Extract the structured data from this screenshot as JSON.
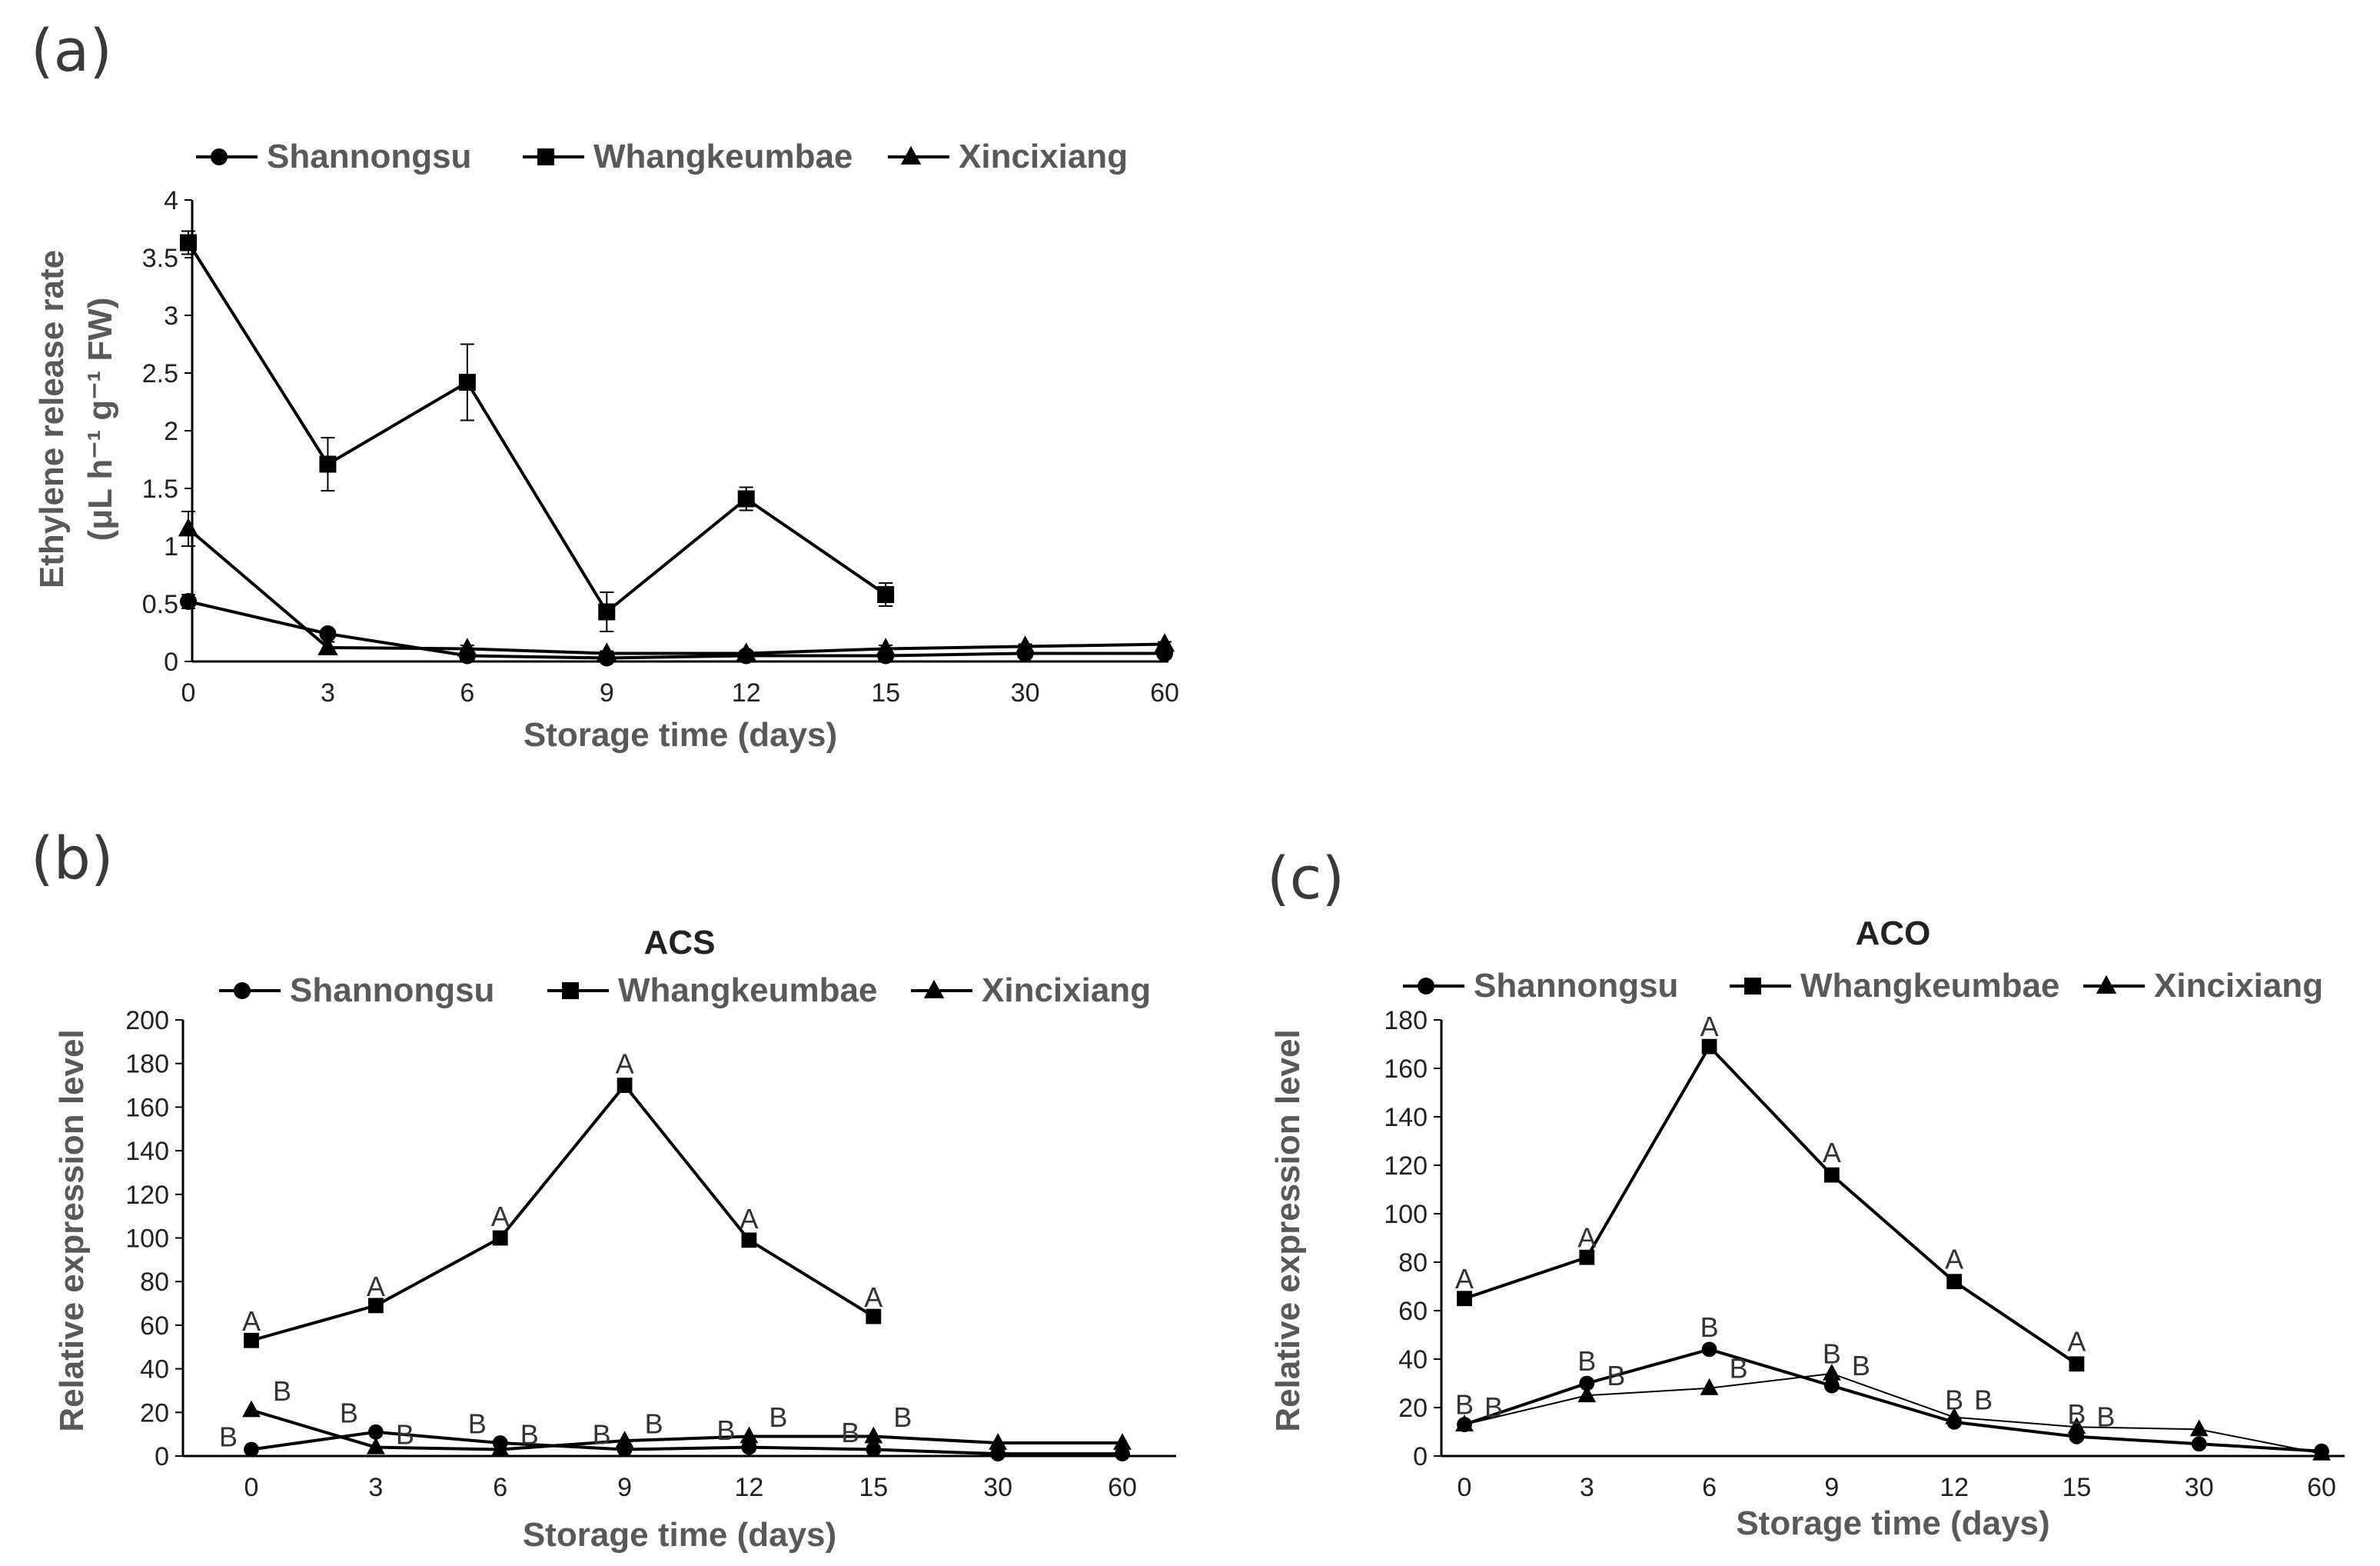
{
  "panel_letters": {
    "a": "(a)",
    "b": "(b)",
    "c": "(c)"
  },
  "legend_labels": [
    "Shannongsu",
    "Whangkeumbae",
    "Xincixiang"
  ],
  "chart_data": [
    {
      "id": "a",
      "type": "line",
      "title": "",
      "xlabel": "Storage time (days)",
      "ylabel_lines": [
        "Ethylene release rate",
        "(μL h⁻¹ g⁻¹ FW)"
      ],
      "categories": [
        "0",
        "3",
        "6",
        "9",
        "12",
        "15",
        "30",
        "60"
      ],
      "ylim": [
        0,
        4
      ],
      "yticks": [
        0,
        0.5,
        1,
        1.5,
        2,
        2.5,
        3,
        3.5,
        4
      ],
      "series": [
        {
          "name": "Shannongsu",
          "marker": "circle",
          "values": [
            0.52,
            0.24,
            0.05,
            0.03,
            0.05,
            0.05,
            0.07,
            0.07
          ],
          "errors": [
            0.06,
            0.03,
            0.02,
            0.01,
            0.02,
            0.02,
            0.02,
            0.02
          ]
        },
        {
          "name": "Whangkeumbae",
          "marker": "square",
          "values": [
            3.63,
            1.71,
            2.42,
            0.43,
            1.41,
            0.58,
            null,
            null
          ],
          "errors": [
            0.1,
            0.23,
            0.33,
            0.17,
            0.1,
            0.1,
            null,
            null
          ]
        },
        {
          "name": "Xincixiang",
          "marker": "triangle",
          "values": [
            1.15,
            0.12,
            0.11,
            0.07,
            0.07,
            0.11,
            0.13,
            0.15
          ],
          "errors": [
            0.15,
            0.05,
            0.03,
            0.02,
            0.02,
            0.03,
            0.02,
            0.02
          ]
        }
      ]
    },
    {
      "id": "b",
      "type": "line",
      "title": "ACS",
      "xlabel": "Storage time (days)",
      "ylabel_lines": [
        "Relative expression level"
      ],
      "categories": [
        "0",
        "3",
        "6",
        "9",
        "12",
        "15",
        "30",
        "60"
      ],
      "ylim": [
        0,
        200
      ],
      "yticks": [
        0,
        20,
        40,
        60,
        80,
        100,
        120,
        140,
        160,
        180,
        200
      ],
      "series": [
        {
          "name": "Shannongsu",
          "marker": "circle",
          "values": [
            3,
            11,
            6,
            3,
            4,
            3,
            1,
            1
          ]
        },
        {
          "name": "Whangkeumbae",
          "marker": "square",
          "values": [
            53,
            69,
            100,
            170,
            99,
            64,
            null,
            null
          ]
        },
        {
          "name": "Xincixiang",
          "marker": "triangle",
          "values": [
            21,
            4,
            3,
            7,
            9,
            9,
            6,
            6
          ]
        }
      ],
      "annotations": [
        {
          "x": 0,
          "y": 56,
          "text": "A"
        },
        {
          "x": 3,
          "y": 72,
          "text": "A"
        },
        {
          "x": 6,
          "y": 104,
          "text": "A"
        },
        {
          "x": 9,
          "y": 174,
          "text": "A"
        },
        {
          "x": 12,
          "y": 103,
          "text": "A"
        },
        {
          "x": 15,
          "y": 67,
          "text": "A"
        },
        {
          "x": 0,
          "y": 3,
          "dx": -30,
          "text": "B"
        },
        {
          "x": 0,
          "y": 24,
          "dx": 40,
          "text": "B"
        },
        {
          "x": 3,
          "y": 14,
          "dx": -35,
          "text": "B"
        },
        {
          "x": 3,
          "y": 4,
          "dx": 38,
          "text": "B"
        },
        {
          "x": 6,
          "y": 9,
          "dx": -30,
          "text": "B"
        },
        {
          "x": 6,
          "y": 4,
          "dx": 38,
          "text": "B"
        },
        {
          "x": 9,
          "y": 4,
          "dx": -30,
          "text": "B"
        },
        {
          "x": 9,
          "y": 9,
          "dx": 38,
          "text": "B"
        },
        {
          "x": 12,
          "y": 6,
          "dx": -30,
          "text": "B"
        },
        {
          "x": 12,
          "y": 12,
          "dx": 38,
          "text": "B"
        },
        {
          "x": 15,
          "y": 5,
          "dx": -30,
          "text": "B"
        },
        {
          "x": 15,
          "y": 12,
          "dx": 38,
          "text": "B"
        }
      ]
    },
    {
      "id": "c",
      "type": "line",
      "title": "ACO",
      "xlabel": "Storage time (days)",
      "ylabel_lines": [
        "Relative expression level"
      ],
      "categories": [
        "0",
        "3",
        "6",
        "9",
        "12",
        "15",
        "30",
        "60"
      ],
      "ylim": [
        0,
        180
      ],
      "yticks": [
        0,
        20,
        40,
        60,
        80,
        100,
        120,
        140,
        160,
        180
      ],
      "series": [
        {
          "name": "Shannongsu",
          "marker": "circle",
          "values": [
            13,
            30,
            44,
            29,
            14,
            8,
            5,
            2
          ]
        },
        {
          "name": "Whangkeumbae",
          "marker": "square",
          "values": [
            65,
            82,
            169,
            116,
            72,
            38,
            null,
            null
          ]
        },
        {
          "name": "Xincixiang",
          "marker": "triangle",
          "values": [
            13,
            25,
            28,
            34,
            16,
            12,
            11,
            1
          ]
        }
      ],
      "annotations": [
        {
          "x": 0,
          "y": 68,
          "text": "A"
        },
        {
          "x": 3,
          "y": 85,
          "text": "A"
        },
        {
          "x": 6,
          "y": 172,
          "text": "A"
        },
        {
          "x": 9,
          "y": 120,
          "text": "A"
        },
        {
          "x": 12,
          "y": 76,
          "text": "A"
        },
        {
          "x": 15,
          "y": 42,
          "text": "A"
        },
        {
          "x": 0,
          "y": 16,
          "dx": 0,
          "text": "B"
        },
        {
          "x": 0,
          "y": 15,
          "dx": 38,
          "text": "B"
        },
        {
          "x": 3,
          "y": 34,
          "dx": 0,
          "text": "B"
        },
        {
          "x": 3,
          "y": 28,
          "dx": 38,
          "text": "B"
        },
        {
          "x": 6,
          "y": 48,
          "dx": 0,
          "text": "B"
        },
        {
          "x": 6,
          "y": 31,
          "dx": 38,
          "text": "B"
        },
        {
          "x": 9,
          "y": 37,
          "dx": 0,
          "text": "B"
        },
        {
          "x": 9,
          "y": 32,
          "dx": 38,
          "text": "B"
        },
        {
          "x": 12,
          "y": 18,
          "dx": 0,
          "text": "B"
        },
        {
          "x": 12,
          "y": 18,
          "dx": 38,
          "text": "B"
        },
        {
          "x": 15,
          "y": 12,
          "dx": 0,
          "text": "B"
        },
        {
          "x": 15,
          "y": 11,
          "dx": 38,
          "text": "B"
        }
      ]
    }
  ]
}
